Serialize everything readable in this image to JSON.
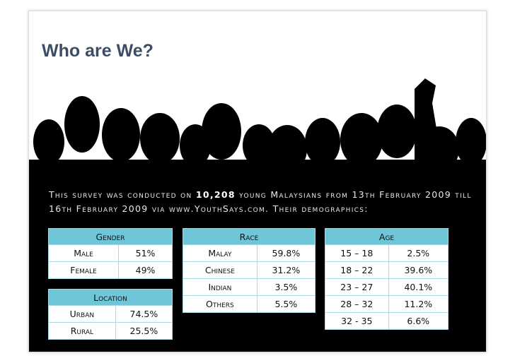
{
  "header": {
    "title": "Who are We?"
  },
  "intro": {
    "before": "This survey was conducted on ",
    "highlight": "10,208",
    "after": " young Malaysians from 13th February 2009 till 16th February 2009 via www.YouthSays.com. Their demographics:"
  },
  "tables": [
    {
      "title": "Gender",
      "rows": [
        [
          "Male",
          "51%"
        ],
        [
          "Female",
          "49%"
        ]
      ]
    },
    {
      "title": "Location",
      "rows": [
        [
          "Urban",
          "74.5%"
        ],
        [
          "Rural",
          "25.5%"
        ]
      ]
    },
    {
      "title": "Race",
      "rows": [
        [
          "Malay",
          "59.8%"
        ],
        [
          "Chinese",
          "31.2%"
        ],
        [
          "Indian",
          "3.5%"
        ],
        [
          "Others",
          "5.5%"
        ]
      ]
    },
    {
      "title": "Age",
      "rows": [
        [
          "15 – 18",
          "2.5%"
        ],
        [
          "18 – 22",
          "39.6%"
        ],
        [
          "23 – 27",
          "40.1%"
        ],
        [
          "28 – 32",
          "11.2%"
        ],
        [
          "32 - 35",
          "6.6%"
        ]
      ]
    }
  ]
}
